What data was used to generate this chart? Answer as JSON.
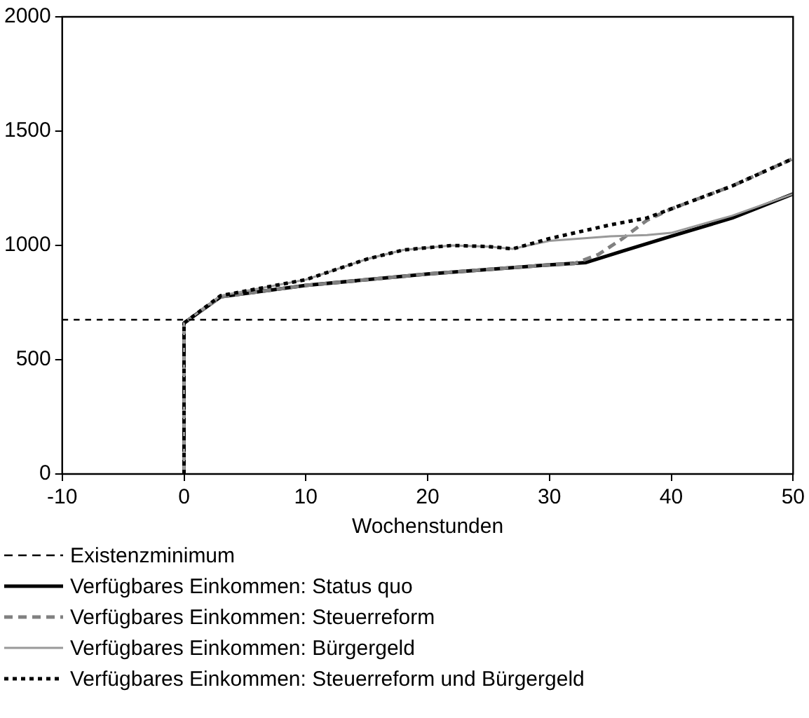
{
  "chart_data": {
    "type": "line",
    "xlabel": "Wochenstunden",
    "xlim": [
      -10,
      50
    ],
    "xticks": [
      -10,
      0,
      10,
      20,
      30,
      40,
      50
    ],
    "ylim": [
      0,
      2000
    ],
    "yticks": [
      0,
      500,
      1000,
      1500,
      2000
    ],
    "grid": false,
    "legend": "bottom left",
    "marker": "none",
    "ref_lines": [
      {
        "axis": "y",
        "value": 675,
        "label": "Existenzminimum",
        "color": "#000000",
        "line_style": "dashed"
      }
    ],
    "series": [
      {
        "name": "Verfügbares Einkommen: Status quo",
        "color": "#000000",
        "line_style": "solid",
        "x": [
          0,
          0,
          3,
          10,
          20,
          30,
          33,
          36,
          40,
          45,
          50
        ],
        "values": [
          0,
          660,
          775,
          825,
          875,
          915,
          925,
          975,
          1040,
          1120,
          1225
        ]
      },
      {
        "name": "Verfügbares Einkommen: Steuerreform",
        "color": "#808080",
        "line_style": "dashed",
        "x": [
          0,
          0,
          3,
          10,
          20,
          30,
          32,
          34,
          36,
          38,
          40,
          45,
          50
        ],
        "values": [
          0,
          660,
          775,
          825,
          875,
          915,
          920,
          960,
          1030,
          1110,
          1160,
          1260,
          1380
        ]
      },
      {
        "name": "Verfügbares Einkommen: Bürgergeld",
        "color": "#999999",
        "line_style": "solid",
        "x": [
          0,
          0,
          3,
          5,
          10,
          15,
          18,
          22,
          25,
          27,
          30,
          35,
          38,
          40,
          45,
          50
        ],
        "values": [
          0,
          660,
          780,
          800,
          850,
          940,
          980,
          1000,
          995,
          985,
          1020,
          1040,
          1045,
          1055,
          1130,
          1225
        ]
      },
      {
        "name": "Verfügbares Einkommen: Steuerreform und Bürgergeld",
        "color": "#000000",
        "line_style": "dotted",
        "x": [
          0,
          0,
          3,
          5,
          10,
          15,
          18,
          22,
          25,
          27,
          30,
          35,
          38,
          40,
          45,
          50
        ],
        "values": [
          0,
          660,
          780,
          800,
          850,
          940,
          980,
          1000,
          995,
          985,
          1030,
          1090,
          1120,
          1160,
          1260,
          1380
        ]
      }
    ]
  }
}
